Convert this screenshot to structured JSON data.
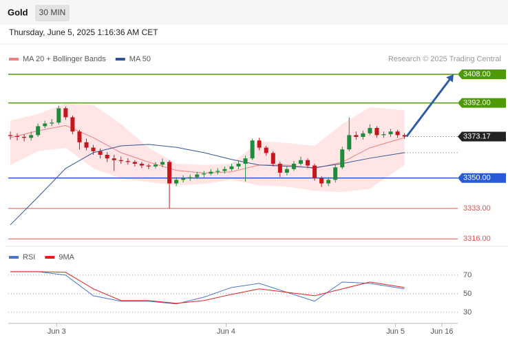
{
  "header": {
    "symbol": "Gold",
    "interval": "30 MIN",
    "datetime": "Thursday, June 5, 2025 1:16:36 AM CET",
    "copyright": "Research © 2025 Trading Central"
  },
  "chart_data": [
    {
      "type": "candlestick",
      "ylim": [
        3313,
        3413
      ],
      "xlim": [
        -0.3,
        64.7
      ],
      "up_color": "#1e8c3c",
      "down_color": "#c4161c",
      "x": [
        0,
        1,
        2,
        3,
        4,
        5,
        6,
        7,
        8,
        9,
        10,
        11,
        12,
        13,
        14,
        15,
        16,
        17,
        18,
        19,
        20,
        21,
        22,
        23,
        24,
        25,
        26,
        27,
        28,
        29,
        30,
        31,
        32,
        33,
        34,
        35,
        36,
        37,
        38,
        39,
        40,
        41,
        42,
        43,
        44,
        45,
        46,
        47,
        48,
        49,
        50,
        51,
        52,
        53,
        54,
        55,
        56,
        57
      ],
      "open": [
        3374,
        3373.5,
        3373,
        3372.5,
        3374,
        3379,
        3380.5,
        3381,
        3389,
        3384,
        3376,
        3370,
        3367,
        3365,
        3363,
        3361,
        3360,
        3359.5,
        3359,
        3358,
        3357,
        3356.5,
        3357.5,
        3359,
        3347,
        3349,
        3350,
        3350.5,
        3352,
        3352.5,
        3353.5,
        3354,
        3355,
        3356.5,
        3358,
        3361,
        3371,
        3367,
        3364,
        3358,
        3353,
        3355,
        3358,
        3360,
        3357,
        3350,
        3347,
        3349,
        3356,
        3366,
        3374,
        3373,
        3375,
        3378,
        3374,
        3374.5,
        3376,
        3374
      ],
      "high": [
        3376,
        3375,
        3374.5,
        3376,
        3380.5,
        3382,
        3383,
        3390.5,
        3390,
        3385,
        3377,
        3372,
        3368.5,
        3366.5,
        3364.5,
        3363,
        3362,
        3361,
        3360,
        3359,
        3358,
        3359,
        3361,
        3360,
        3350.5,
        3351.5,
        3352,
        3353.5,
        3354,
        3355,
        3355.5,
        3356.5,
        3358,
        3359.5,
        3362.5,
        3372,
        3372.5,
        3368,
        3365,
        3359,
        3356.5,
        3359.5,
        3362,
        3361,
        3358,
        3351,
        3350.5,
        3357.5,
        3367.5,
        3384,
        3376,
        3376.5,
        3380,
        3379,
        3376,
        3377.5,
        3377,
        3375
      ],
      "low": [
        3371.5,
        3371,
        3370.5,
        3371,
        3373,
        3378,
        3379,
        3380,
        3382.5,
        3374.5,
        3366,
        3365.5,
        3363,
        3361,
        3359,
        3354,
        3358,
        3357.5,
        3356.5,
        3355.5,
        3355,
        3355.5,
        3356,
        3333,
        3345.5,
        3347.5,
        3348.5,
        3349.5,
        3350.5,
        3351.5,
        3352,
        3352.5,
        3354,
        3355,
        3348,
        3360,
        3365.5,
        3362.5,
        3356.5,
        3350.5,
        3351.5,
        3354,
        3357,
        3355.5,
        3348.5,
        3345,
        3345.5,
        3347.5,
        3355,
        3365,
        3371.5,
        3371.5,
        3374,
        3372.5,
        3372.5,
        3373,
        3372.5,
        3372
      ],
      "close": [
        3373.5,
        3373,
        3372.5,
        3374,
        3379,
        3380.5,
        3381,
        3389,
        3384,
        3376,
        3370,
        3367,
        3365,
        3363,
        3361,
        3360,
        3359.5,
        3359,
        3358,
        3357,
        3356.5,
        3357.5,
        3359,
        3347,
        3349,
        3350,
        3350.5,
        3352,
        3352.5,
        3353.5,
        3354,
        3355,
        3356.5,
        3358,
        3361,
        3371,
        3367,
        3364,
        3358,
        3353,
        3355,
        3358,
        3360,
        3357,
        3350,
        3347,
        3349,
        3356,
        3366,
        3374,
        3373,
        3375,
        3378,
        3374,
        3374.5,
        3376,
        3374,
        3373.2
      ],
      "series": [
        {
          "name": "MA 20 + Bollinger Bands",
          "color": "#f08080",
          "band_color": "#ffdede",
          "x": [
            0,
            4,
            8,
            12,
            16,
            20,
            24,
            28,
            32,
            36,
            40,
            44,
            48,
            52,
            57
          ],
          "values": [
            3372.6,
            3376.4,
            3379.4,
            3372.6,
            3364.2,
            3358.9,
            3354.3,
            3352.8,
            3353.5,
            3357.3,
            3357.3,
            3355.4,
            3358.9,
            3366.9,
            3372.6
          ],
          "upper": [
            3382.1,
            3385.9,
            3391.6,
            3390.9,
            3380.2,
            3366.9,
            3358.1,
            3357.3,
            3358.1,
            3370.7,
            3369.6,
            3368.0,
            3380.2,
            3389.7,
            3387.8
          ],
          "lower": [
            3357.3,
            3365.0,
            3366.9,
            3355.4,
            3349.7,
            3347.8,
            3345.9,
            3346.7,
            3349.0,
            3345.9,
            3345.1,
            3342.9,
            3342.1,
            3344.0,
            3357.3
          ]
        },
        {
          "name": "MA 50",
          "color": "#2f5597",
          "x": [
            0,
            4,
            8,
            12,
            16,
            20,
            24,
            28,
            32,
            36,
            40,
            44,
            48,
            52,
            57
          ],
          "values": [
            3323.8,
            3339.4,
            3355.4,
            3364.2,
            3368.0,
            3368.8,
            3367.2,
            3364.2,
            3360.4,
            3357.3,
            3356.6,
            3355.8,
            3358.1,
            3361.1,
            3364.2
          ]
        }
      ],
      "levels": [
        {
          "value": 3408,
          "label": "3408.00",
          "color": "#4e9a06",
          "style": "box",
          "line": "solid"
        },
        {
          "value": 3392,
          "label": "3392.00",
          "color": "#4e9a06",
          "style": "box",
          "line": "solid"
        },
        {
          "value": 3373.17,
          "label": "3373.17",
          "color": "#222222",
          "style": "box",
          "line": "dotted"
        },
        {
          "value": 3350,
          "label": "3350.00",
          "color": "#2a5bd7",
          "style": "box",
          "line": "solid"
        },
        {
          "value": 3333,
          "label": "3333.00",
          "color": "#d9534f",
          "style": "text",
          "line": "solid"
        },
        {
          "value": 3316,
          "label": "3316.00",
          "color": "#d9534f",
          "style": "text",
          "line": "solid"
        }
      ]
    },
    {
      "type": "line",
      "ylim": [
        24,
        81
      ],
      "xlim": [
        -0.3,
        64.7
      ],
      "yticks": [
        30,
        50,
        70
      ],
      "xticks": [
        {
          "value": 6.7,
          "label": "Jun 3"
        },
        {
          "value": 31.2,
          "label": "Jun 4"
        },
        {
          "value": 55.7,
          "label": "Jun 5"
        },
        {
          "value": 62.4,
          "label": "Jun 16"
        }
      ],
      "series": [
        {
          "name": "RSI",
          "color": "#4a74d0",
          "x": [
            0,
            4,
            8,
            12,
            16,
            20,
            24,
            28,
            32,
            36,
            40,
            44,
            48,
            52,
            57
          ],
          "values": [
            73.7,
            73.7,
            70,
            47.8,
            41.9,
            41.9,
            39,
            46.3,
            56.7,
            61.1,
            51.5,
            41.9,
            62.6,
            61.1,
            55.2
          ]
        },
        {
          "name": "9MA",
          "color": "#e0201b",
          "x": [
            0,
            4,
            8,
            12,
            16,
            20,
            24,
            28,
            32,
            36,
            40,
            44,
            48,
            52,
            57
          ],
          "values": [
            73.7,
            73.7,
            73,
            55.2,
            42.6,
            42.6,
            39.6,
            42.6,
            49.3,
            55.2,
            51.5,
            47.8,
            55.2,
            62.6,
            56.7
          ]
        }
      ]
    }
  ]
}
